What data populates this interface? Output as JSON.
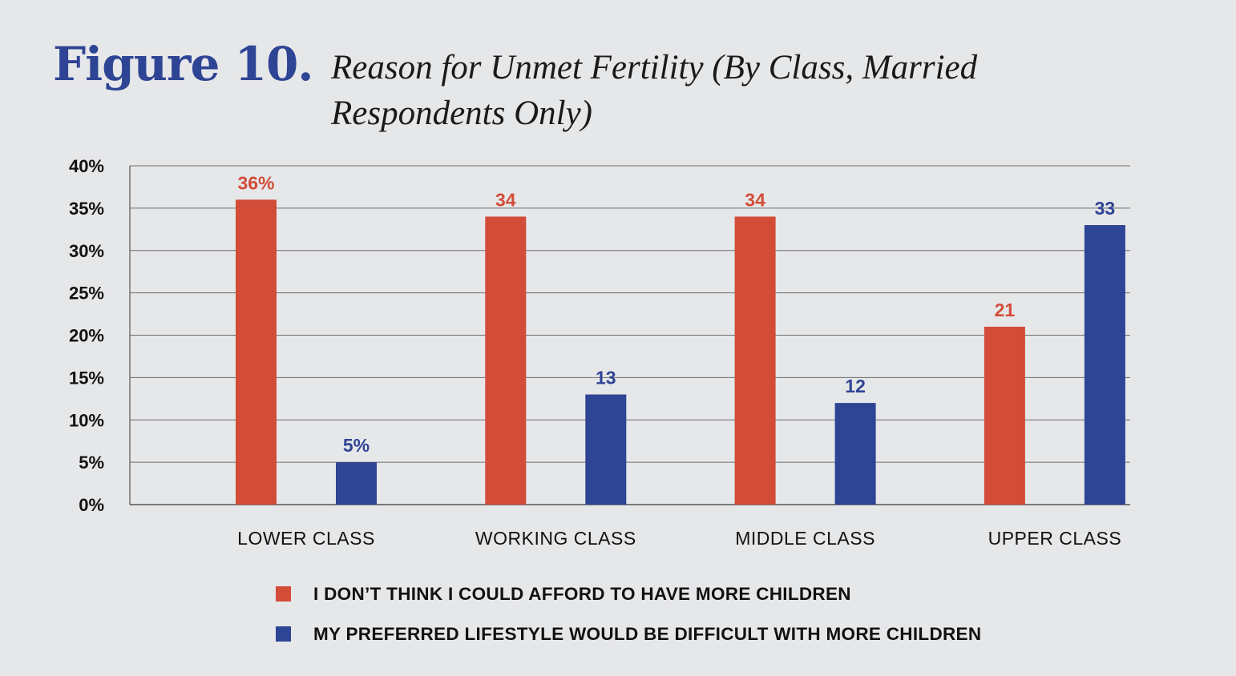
{
  "figure_label": "Figure 10.",
  "chart_data": {
    "type": "bar",
    "title": "Reason for Unmet Fertility (By Class, Married Respondents Only)",
    "xlabel": "",
    "ylabel": "",
    "categories": [
      "LOWER CLASS",
      "WORKING CLASS",
      "MIDDLE CLASS",
      "UPPER CLASS"
    ],
    "series": [
      {
        "name": "I DON’T THINK I COULD AFFORD TO HAVE MORE CHILDREN",
        "color": "#d24c38",
        "values": [
          36,
          34,
          34,
          21
        ],
        "data_labels": [
          "36%",
          "34",
          "34",
          "21"
        ]
      },
      {
        "name": "MY PREFERRED LIFESTYLE WOULD BE DIFFICULT WITH MORE CHILDREN",
        "color": "#2e4494",
        "values": [
          5,
          13,
          12,
          33
        ],
        "data_labels": [
          "5%",
          "13",
          "12",
          "33"
        ]
      }
    ],
    "ylim": [
      0,
      40
    ],
    "yticks": [
      0,
      5,
      10,
      15,
      20,
      25,
      30,
      35,
      40
    ],
    "ytick_labels": [
      "0%",
      "5%",
      "10%",
      "15%",
      "20%",
      "25%",
      "30%",
      "35%",
      "40%"
    ],
    "grid": true,
    "legend_position": "bottom-center"
  }
}
